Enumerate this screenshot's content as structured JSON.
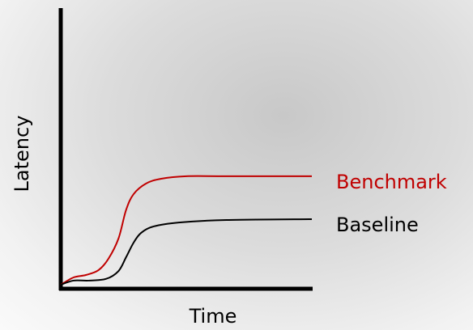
{
  "chart_data": {
    "type": "line",
    "x_label": "Time",
    "y_label": "Latency",
    "xlim": [
      0,
      100
    ],
    "ylim": [
      0,
      100
    ],
    "series": [
      {
        "name": "Benchmark",
        "color": "#c00000",
        "x": [
          0,
          5,
          10,
          15,
          19,
          23,
          26,
          29,
          34,
          40,
          50,
          66,
          100
        ],
        "values": [
          1.4,
          4.0,
          4.9,
          6.6,
          10.7,
          17.9,
          28.0,
          33.7,
          37.5,
          39.2,
          40.1,
          40.1,
          40.1
        ]
      },
      {
        "name": "Baseline",
        "color": "#000000",
        "x": [
          0,
          5,
          11,
          18,
          23,
          26,
          29,
          32,
          37,
          47,
          66,
          100
        ],
        "values": [
          1.4,
          2.9,
          2.9,
          3.5,
          6.3,
          11.2,
          16.4,
          19.9,
          22.2,
          23.6,
          24.5,
          24.8
        ]
      }
    ]
  }
}
